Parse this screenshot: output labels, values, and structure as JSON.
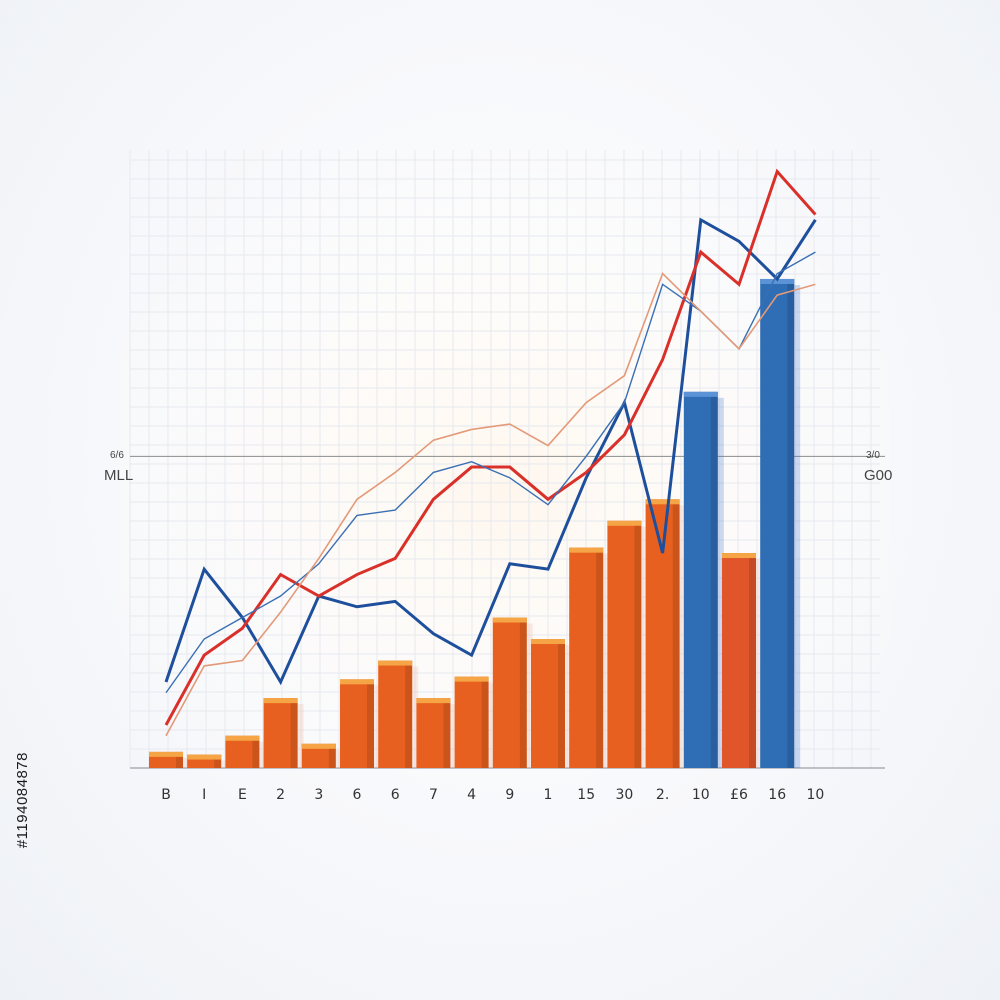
{
  "chart_data": {
    "type": "bar",
    "categories": [
      "B",
      "I",
      "E",
      "2",
      "3",
      "6",
      "6",
      "7",
      "4",
      "9",
      "1",
      "15",
      "30",
      "2.",
      "10",
      "£6",
      "16",
      "10"
    ],
    "values": [
      3,
      2.5,
      6,
      13,
      4.5,
      16.5,
      20,
      13,
      17,
      28,
      24,
      41,
      46,
      50,
      70,
      40,
      91,
      null
    ],
    "bar_colors": [
      "#e8601f",
      "#e8601f",
      "#e8601f",
      "#e8601f",
      "#e8601f",
      "#e8601f",
      "#e8601f",
      "#e8601f",
      "#e8601f",
      "#e8601f",
      "#e8601f",
      "#e8601f",
      "#e8601f",
      "#e8601f",
      "#2f6db5",
      "#e0562a",
      "#2f6db5",
      null
    ],
    "line_x": [
      0,
      1,
      2,
      3,
      4,
      5,
      6,
      7,
      8,
      9,
      10,
      11,
      12,
      13,
      14,
      15,
      16,
      17
    ],
    "series": [
      {
        "color": "#1d4f9c",
        "values": [
          16,
          37,
          28,
          16,
          32,
          30,
          31,
          25,
          21,
          38,
          37,
          54,
          68,
          40,
          102,
          98,
          91,
          102
        ]
      },
      {
        "color": "#d9302a",
        "values": [
          8,
          21,
          26,
          36,
          32,
          36,
          39,
          50,
          56,
          56,
          50,
          55,
          62,
          76,
          96,
          90,
          111,
          103
        ]
      },
      {
        "color": "#3a6fb3",
        "values": [
          14,
          24,
          28,
          32,
          38,
          47,
          48,
          55,
          57,
          54,
          49,
          58,
          68,
          90,
          85,
          78,
          92,
          96
        ]
      },
      {
        "color": "#e39a78",
        "values": [
          6,
          19,
          20,
          29,
          39,
          50,
          55,
          61,
          63,
          64,
          60,
          68,
          73,
          92,
          85,
          78,
          88,
          90
        ]
      }
    ],
    "ylim": [
      0,
      115
    ],
    "title": "",
    "xlabel": "",
    "ylabel": "",
    "left_marker": {
      "small": "6/6",
      "label": "MLL"
    },
    "right_marker": {
      "small": "3/0",
      "label": "G00"
    },
    "marker_value": 58,
    "grid": true
  },
  "watermark": "#1194084878"
}
